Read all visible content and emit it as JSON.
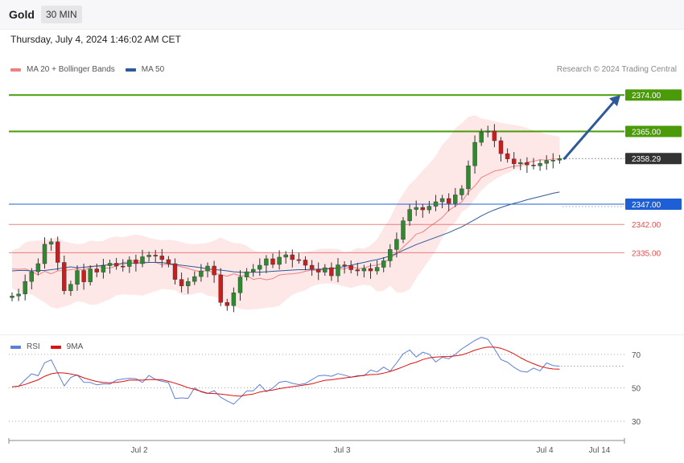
{
  "header": {
    "instrument": "Gold",
    "timeframe": "30 MIN"
  },
  "datetime": "Thursday, July 4, 2024 1:46:02 AM CET",
  "copyright": "Research © 2024 Trading Central",
  "legend_main": [
    {
      "label": "MA 20 + Bollinger Bands",
      "color": "#f08080"
    },
    {
      "label": "MA 50",
      "color": "#2e5a9a"
    }
  ],
  "legend_rsi": [
    {
      "label": "RSI",
      "color": "#5a7fd6"
    },
    {
      "label": "9MA",
      "color": "#dd1111"
    }
  ],
  "colors": {
    "up_candle": "#2f8a2f",
    "down_candle": "#c81e1e",
    "target_green": "#4a9a0a",
    "pivot_blue": "#1e5fd6",
    "support_red": "#e05050",
    "current_dark": "#333333",
    "arrow": "#2e5a9a",
    "band_fill": "#fde3e3"
  },
  "chart_data": [
    {
      "type": "candlestick",
      "title": "Gold 30 MIN",
      "ylim": [
        2316,
        2380
      ],
      "x_labels": [
        "Jul 2",
        "Jul 3",
        "Jul 4",
        "Jul 14"
      ],
      "levels": [
        {
          "label": "2374.00",
          "value": 2374.0,
          "kind": "target"
        },
        {
          "label": "2365.00",
          "value": 2365.0,
          "kind": "target"
        },
        {
          "label": "2358.29",
          "value": 2358.29,
          "kind": "current"
        },
        {
          "label": "2347.00",
          "value": 2347.0,
          "kind": "pivot"
        },
        {
          "label": "2342.00",
          "value": 2342.0,
          "kind": "support"
        },
        {
          "label": "2335.00",
          "value": 2335.0,
          "kind": "support"
        }
      ],
      "close": [
        2324.3,
        2324.8,
        2327.9,
        2330.3,
        2332.3,
        2337.1,
        2337.7,
        2332.6,
        2325.6,
        2327.2,
        2330.6,
        2327.8,
        2331.0,
        2330.2,
        2331.8,
        2332.4,
        2331.7,
        2331.6,
        2333.2,
        2332.3,
        2334.0,
        2334.4,
        2334.2,
        2333.3,
        2332.3,
        2328.4,
        2326.8,
        2327.9,
        2329.1,
        2330.5,
        2331.7,
        2329.5,
        2322.7,
        2321.9,
        2325.1,
        2329.0,
        2330.3,
        2330.9,
        2331.9,
        2333.5,
        2332.1,
        2333.9,
        2334.5,
        2333.3,
        2333.2,
        2331.9,
        2330.9,
        2330.2,
        2331.3,
        2329.3,
        2332.0,
        2331.8,
        2330.8,
        2330.5,
        2331.1,
        2330.5,
        2331.4,
        2333.0,
        2335.8,
        2338.3,
        2342.9,
        2345.7,
        2346.2,
        2345.6,
        2346.5,
        2347.6,
        2348.4,
        2347.2,
        2349.3,
        2350.8,
        2356.5,
        2362.3,
        2364.8,
        2365.1,
        2362.7,
        2359.5,
        2358.2,
        2357.0,
        2357.3,
        2356.7,
        2356.5,
        2357.1,
        2357.8,
        2357.9,
        2358.29
      ],
      "ma20": [
        2331.0,
        2330.9,
        2331.0,
        2330.4,
        2329.5,
        2330.4,
        2329.8,
        2330.5,
        2330.6,
        2330.8,
        2331.0,
        2330.7,
        2331.4,
        2331.8,
        2331.2,
        2331.2,
        2331.7,
        2332.6,
        2332.7,
        2333.3,
        2332.7,
        2332.6,
        2332.6,
        2332.1,
        2332.1,
        2331.9,
        2331.5,
        2331.1,
        2330.6,
        2330.3,
        2330.7,
        2329.9,
        2329.6,
        2329.2,
        2329.8,
        2329.3,
        2329.3,
        2328.4,
        2328.7,
        2328.3,
        2328.6,
        2329.5,
        2329.7,
        2329.8,
        2330.0,
        2330.4,
        2330.7,
        2330.6,
        2330.9,
        2331.3,
        2331.0,
        2331.0,
        2331.6,
        2331.1,
        2331.2,
        2331.8,
        2331.9,
        2332.5,
        2333.6,
        2334.8,
        2336.4,
        2337.9,
        2339.6,
        2340.1,
        2341.4,
        2342.5,
        2343.7,
        2345.5,
        2346.5,
        2347.6,
        2350.0,
        2351.5,
        2353.6,
        2354.4,
        2355.2,
        2355.5,
        2356.0,
        2356.4,
        2356.6,
        2357.4,
        2357.6,
        2358.0,
        2357.9,
        2358.2,
        2358.2
      ],
      "ma50": [
        2330.5,
        2330.6,
        2330.6,
        2330.5,
        2330.6,
        2330.6,
        2330.8,
        2331.0,
        2331.3,
        2331.5,
        2331.3,
        2331.4,
        2331.6,
        2331.7,
        2331.9,
        2332.0,
        2332.2,
        2332.3,
        2332.4,
        2332.5,
        2332.5,
        2332.6,
        2332.6,
        2332.6,
        2332.3,
        2332.1,
        2331.9,
        2331.7,
        2331.5,
        2331.3,
        2331.0,
        2330.8,
        2330.7,
        2330.5,
        2330.3,
        2330.2,
        2330.1,
        2330.2,
        2330.2,
        2330.3,
        2330.4,
        2330.5,
        2330.6,
        2330.7,
        2330.8,
        2330.8,
        2330.9,
        2330.9,
        2331.0,
        2331.0,
        2331.3,
        2331.6,
        2331.9,
        2332.3,
        2332.6,
        2333.0,
        2333.3,
        2333.7,
        2334.2,
        2334.8,
        2335.6,
        2336.3,
        2337.0,
        2337.6,
        2338.2,
        2338.8,
        2339.4,
        2340.0,
        2340.7,
        2341.4,
        2342.3,
        2343.2,
        2344.1,
        2344.9,
        2345.6,
        2346.2,
        2346.7,
        2347.2,
        2347.6,
        2348.1,
        2348.5,
        2348.9,
        2349.3,
        2349.7,
        2350.0
      ],
      "bollinger_upper": [
        2335.6,
        2336.1,
        2337.5,
        2337.9,
        2338.0,
        2338.1,
        2338.4,
        2338.7,
        2337.8,
        2337.4,
        2337.1,
        2337.2,
        2338.0,
        2337.8,
        2337.9,
        2338.7,
        2339.0,
        2338.8,
        2339.2,
        2339.5,
        2339.2,
        2338.7,
        2338.3,
        2338.0,
        2338.2,
        2338.0,
        2337.6,
        2337.2,
        2337.1,
        2337.2,
        2337.4,
        2338.0,
        2338.8,
        2338.0,
        2337.4,
        2337.3,
        2336.7,
        2335.6,
        2335.2,
        2335.2,
        2335.2,
        2335.1,
        2334.4,
        2334.6,
        2334.6,
        2335.1,
        2335.4,
        2335.9,
        2336.0,
        2336.0,
        2335.9,
        2335.1,
        2335.4,
        2336.2,
        2336.0,
        2336.8,
        2338.3,
        2341.2,
        2343.5,
        2347.0,
        2349.6,
        2351.9,
        2353.4,
        2355.3,
        2357.0,
        2358.9,
        2361.7,
        2363.3,
        2365.8,
        2367.0,
        2368.6,
        2369.0,
        2368.2,
        2367.9,
        2367.5,
        2367.1,
        2366.8,
        2366.6,
        2366.3,
        2365.8,
        2365.3,
        2364.8,
        2364.3,
        2364.0,
        2363.7
      ],
      "bollinger_lower": [
        2326.2,
        2325.3,
        2325.0,
        2324.7,
        2323.7,
        2322.7,
        2321.5,
        2321.2,
        2321.7,
        2322.2,
        2323.0,
        2322.8,
        2322.1,
        2322.2,
        2322.9,
        2323.5,
        2324.5,
        2324.7,
        2324.6,
        2324.6,
        2324.4,
        2325.0,
        2325.5,
        2326.1,
        2325.9,
        2325.8,
        2324.6,
        2324.5,
        2324.9,
        2325.2,
        2324.4,
        2324.2,
        2323.5,
        2322.3,
        2321.9,
        2321.1,
        2320.9,
        2321.0,
        2321.1,
        2321.4,
        2321.5,
        2321.9,
        2323.3,
        2324.6,
        2325.3,
        2325.7,
        2326.7,
        2327.2,
        2327.4,
        2327.4,
        2327.1,
        2326.7,
        2326.3,
        2326.8,
        2327.1,
        2326.9,
        2325.4,
        2325.6,
        2326.9,
        2325.2,
        2325.2,
        2326.0,
        2328.7,
        2330.9,
        2333.3,
        2335.6,
        2338.6,
        2341.3,
        2342.5,
        2345.1,
        2346.2,
        2348.3,
        2350.4,
        2351.9,
        2353.0,
        2354.0,
        2354.7,
        2355.4,
        2356.0,
        2356.7,
        2357.3,
        2357.8,
        2358.1,
        2358.4,
        2358.6
      ]
    },
    {
      "type": "line",
      "title": "RSI",
      "ylim": [
        20,
        80
      ],
      "y_ticks": [
        "70",
        "50",
        "30"
      ],
      "series": [
        {
          "name": "RSI",
          "values": [
            50.6,
            50.9,
            54.8,
            58.4,
            57.2,
            65.0,
            66.7,
            59.0,
            51.1,
            56.2,
            57.8,
            53.3,
            53.2,
            51.8,
            52.4,
            52.2,
            54.6,
            55.3,
            55.7,
            55.5,
            53.2,
            57.4,
            55.0,
            53.9,
            53.1,
            43.6,
            44.0,
            43.7,
            50.0,
            47.6,
            46.6,
            48.3,
            44.4,
            42.2,
            40.3,
            44.1,
            48.2,
            48.2,
            52.0,
            47.7,
            49.9,
            53.3,
            54.0,
            52.7,
            51.9,
            52.6,
            54.9,
            57.2,
            57.5,
            56.9,
            58.5,
            57.6,
            56.4,
            57.3,
            57.2,
            60.6,
            59.5,
            62.4,
            60.0,
            64.9,
            70.3,
            72.6,
            68.4,
            71.3,
            70.0,
            65.4,
            68.3,
            67.4,
            70.0,
            73.3,
            75.8,
            78.3,
            80.2,
            79.0,
            73.3,
            66.9,
            65.3,
            62.3,
            60.0,
            59.4,
            61.8,
            60.2,
            64.9,
            63.3,
            62.9
          ]
        },
        {
          "name": "9MA",
          "values": [
            50.6,
            51.0,
            52.0,
            53.4,
            54.8,
            56.9,
            58.4,
            59.0,
            58.9,
            58.3,
            57.5,
            56.0,
            54.8,
            53.8,
            53.2,
            53.0,
            53.3,
            53.8,
            54.6,
            54.7,
            54.6,
            54.9,
            55.0,
            54.8,
            53.9,
            52.8,
            51.5,
            50.1,
            49.1,
            47.9,
            46.8,
            46.6,
            46.3,
            45.8,
            45.3,
            45.0,
            45.8,
            46.3,
            47.5,
            48.2,
            48.7,
            49.5,
            50.1,
            50.7,
            51.2,
            51.8,
            52.4,
            53.5,
            54.5,
            54.8,
            55.4,
            55.9,
            56.4,
            56.9,
            57.5,
            57.9,
            58.0,
            58.8,
            59.8,
            61.1,
            62.6,
            64.2,
            65.3,
            66.9,
            67.9,
            68.4,
            68.6,
            68.7,
            69.1,
            69.7,
            71.0,
            72.5,
            73.6,
            74.4,
            74.3,
            73.6,
            72.2,
            70.3,
            68.0,
            66.0,
            64.4,
            62.9,
            61.9,
            61.3,
            61.2
          ]
        }
      ]
    }
  ]
}
